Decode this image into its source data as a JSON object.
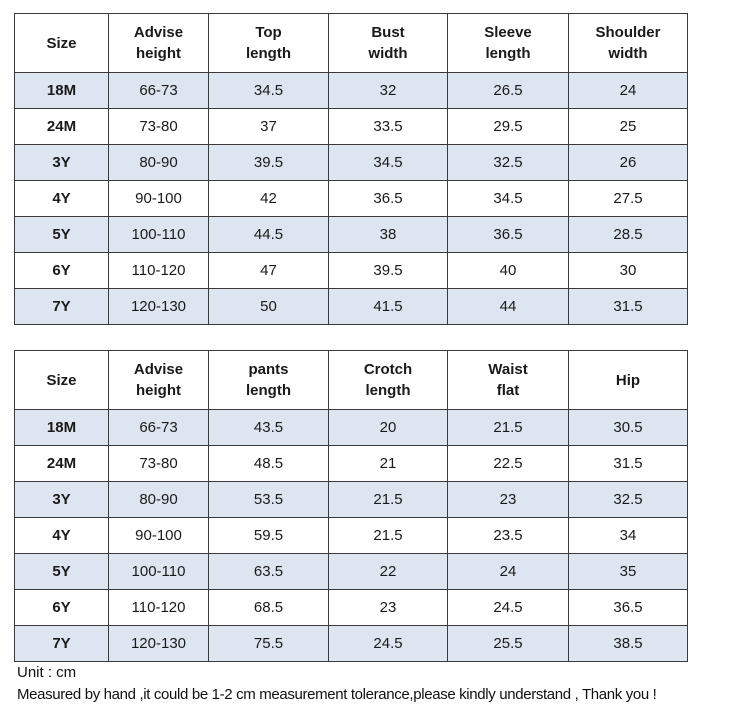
{
  "top_table": {
    "headers": [
      [
        "Size"
      ],
      [
        "Advise",
        "height"
      ],
      [
        "Top",
        "length"
      ],
      [
        "Bust",
        "width"
      ],
      [
        "Sleeve",
        "length"
      ],
      [
        "Shoulder",
        "width"
      ]
    ],
    "rows": [
      [
        "18M",
        "66-73",
        "34.5",
        "32",
        "26.5",
        "24"
      ],
      [
        "24M",
        "73-80",
        "37",
        "33.5",
        "29.5",
        "25"
      ],
      [
        "3Y",
        "80-90",
        "39.5",
        "34.5",
        "32.5",
        "26"
      ],
      [
        "4Y",
        "90-100",
        "42",
        "36.5",
        "34.5",
        "27.5"
      ],
      [
        "5Y",
        "100-110",
        "44.5",
        "38",
        "36.5",
        "28.5"
      ],
      [
        "6Y",
        "110-120",
        "47",
        "39.5",
        "40",
        "30"
      ],
      [
        "7Y",
        "120-130",
        "50",
        "41.5",
        "44",
        "31.5"
      ]
    ]
  },
  "bottom_table": {
    "headers": [
      [
        "Size"
      ],
      [
        "Advise",
        "height"
      ],
      [
        "pants",
        "length"
      ],
      [
        "Crotch",
        "length"
      ],
      [
        "Waist",
        "flat"
      ],
      [
        "Hip"
      ]
    ],
    "rows": [
      [
        "18M",
        "66-73",
        "43.5",
        "20",
        "21.5",
        "30.5"
      ],
      [
        "24M",
        "73-80",
        "48.5",
        "21",
        "22.5",
        "31.5"
      ],
      [
        "3Y",
        "80-90",
        "53.5",
        "21.5",
        "23",
        "32.5"
      ],
      [
        "4Y",
        "90-100",
        "59.5",
        "21.5",
        "23.5",
        "34"
      ],
      [
        "5Y",
        "100-110",
        "63.5",
        "22",
        "24",
        "35"
      ],
      [
        "6Y",
        "110-120",
        "68.5",
        "23",
        "24.5",
        "36.5"
      ],
      [
        "7Y",
        "120-130",
        "75.5",
        "24.5",
        "25.5",
        "38.5"
      ]
    ]
  },
  "notes": {
    "unit": "Unit : cm",
    "tolerance": "Measured by hand ,it could be 1-2 cm measurement tolerance,please kindly understand , Thank you !"
  },
  "colors": {
    "shaded_row": "#dde6f0",
    "border": "#3a3a3a"
  }
}
